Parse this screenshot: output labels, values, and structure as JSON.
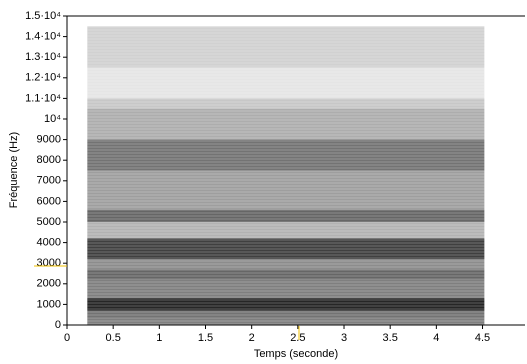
{
  "chart_data": {
    "type": "spectrogram",
    "x_label": "Temps (seconde)",
    "y_label": "Fréquence  (Hz)",
    "xlim": [
      0,
      4.96
    ],
    "ylim": [
      0,
      15000
    ],
    "xticks": [
      0,
      0.5,
      1,
      1.5,
      2,
      2.5,
      3,
      3.5,
      4,
      4.5
    ],
    "yticks": [
      0,
      1000,
      2000,
      3000,
      4000,
      5000,
      6000,
      7000,
      8000,
      9000,
      {
        "value": 10000,
        "label": "10⁴"
      },
      {
        "value": 11000,
        "label": "1.1·10⁴"
      },
      {
        "value": 12000,
        "label": "1.2·10⁴"
      },
      {
        "value": 13000,
        "label": "1.3·10⁴"
      },
      {
        "value": 14000,
        "label": "1.4·10⁴"
      },
      {
        "value": 15000,
        "label": "1.5·10⁴"
      }
    ],
    "time_range": [
      0.22,
      4.52
    ],
    "color": "#000000",
    "bands": [
      {
        "low": 0,
        "high": 300,
        "level": 0.5
      },
      {
        "low": 300,
        "high": 700,
        "level": 0.55
      },
      {
        "low": 700,
        "high": 1300,
        "level": 0.85
      },
      {
        "low": 1300,
        "high": 2200,
        "level": 0.5
      },
      {
        "low": 2200,
        "high": 2700,
        "level": 0.6
      },
      {
        "low": 2700,
        "high": 3200,
        "level": 0.45
      },
      {
        "low": 3200,
        "high": 4200,
        "level": 0.75
      },
      {
        "low": 4200,
        "high": 5000,
        "level": 0.3
      },
      {
        "low": 5000,
        "high": 5600,
        "level": 0.6
      },
      {
        "low": 5600,
        "high": 7500,
        "level": 0.38
      },
      {
        "low": 7500,
        "high": 9000,
        "level": 0.55
      },
      {
        "low": 9000,
        "high": 10500,
        "level": 0.32
      },
      {
        "low": 10500,
        "high": 11000,
        "level": 0.22
      },
      {
        "low": 11000,
        "high": 12500,
        "level": 0.1
      },
      {
        "low": 12500,
        "high": 14500,
        "level": 0.18
      }
    ]
  }
}
